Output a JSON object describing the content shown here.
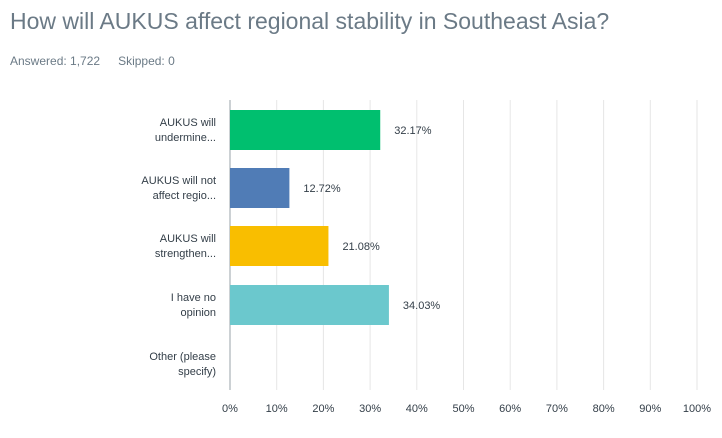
{
  "question": "How will AUKUS affect regional stability in Southeast Asia?",
  "answered_label": "Answered: 1,722",
  "skipped_label": "Skipped: 0",
  "chart_data": {
    "type": "bar",
    "orientation": "horizontal",
    "categories": [
      [
        "AUKUS will",
        "undermine..."
      ],
      [
        "AUKUS will not",
        "affect regio..."
      ],
      [
        "AUKUS will",
        "strengthen..."
      ],
      [
        "I have no",
        "opinion"
      ],
      [
        "Other (please",
        "specify)"
      ]
    ],
    "values": [
      32.17,
      12.72,
      21.08,
      34.03,
      0
    ],
    "value_labels": [
      "32.17%",
      "12.72%",
      "21.08%",
      "34.03%",
      ""
    ],
    "colors": [
      "#00bf6f",
      "#507cb6",
      "#f9be00",
      "#6bc8cd",
      "#cccccc"
    ],
    "xlim": [
      0,
      100
    ],
    "xticks": [
      "0%",
      "10%",
      "20%",
      "30%",
      "40%",
      "50%",
      "60%",
      "70%",
      "80%",
      "90%",
      "100%"
    ],
    "grid": true
  }
}
